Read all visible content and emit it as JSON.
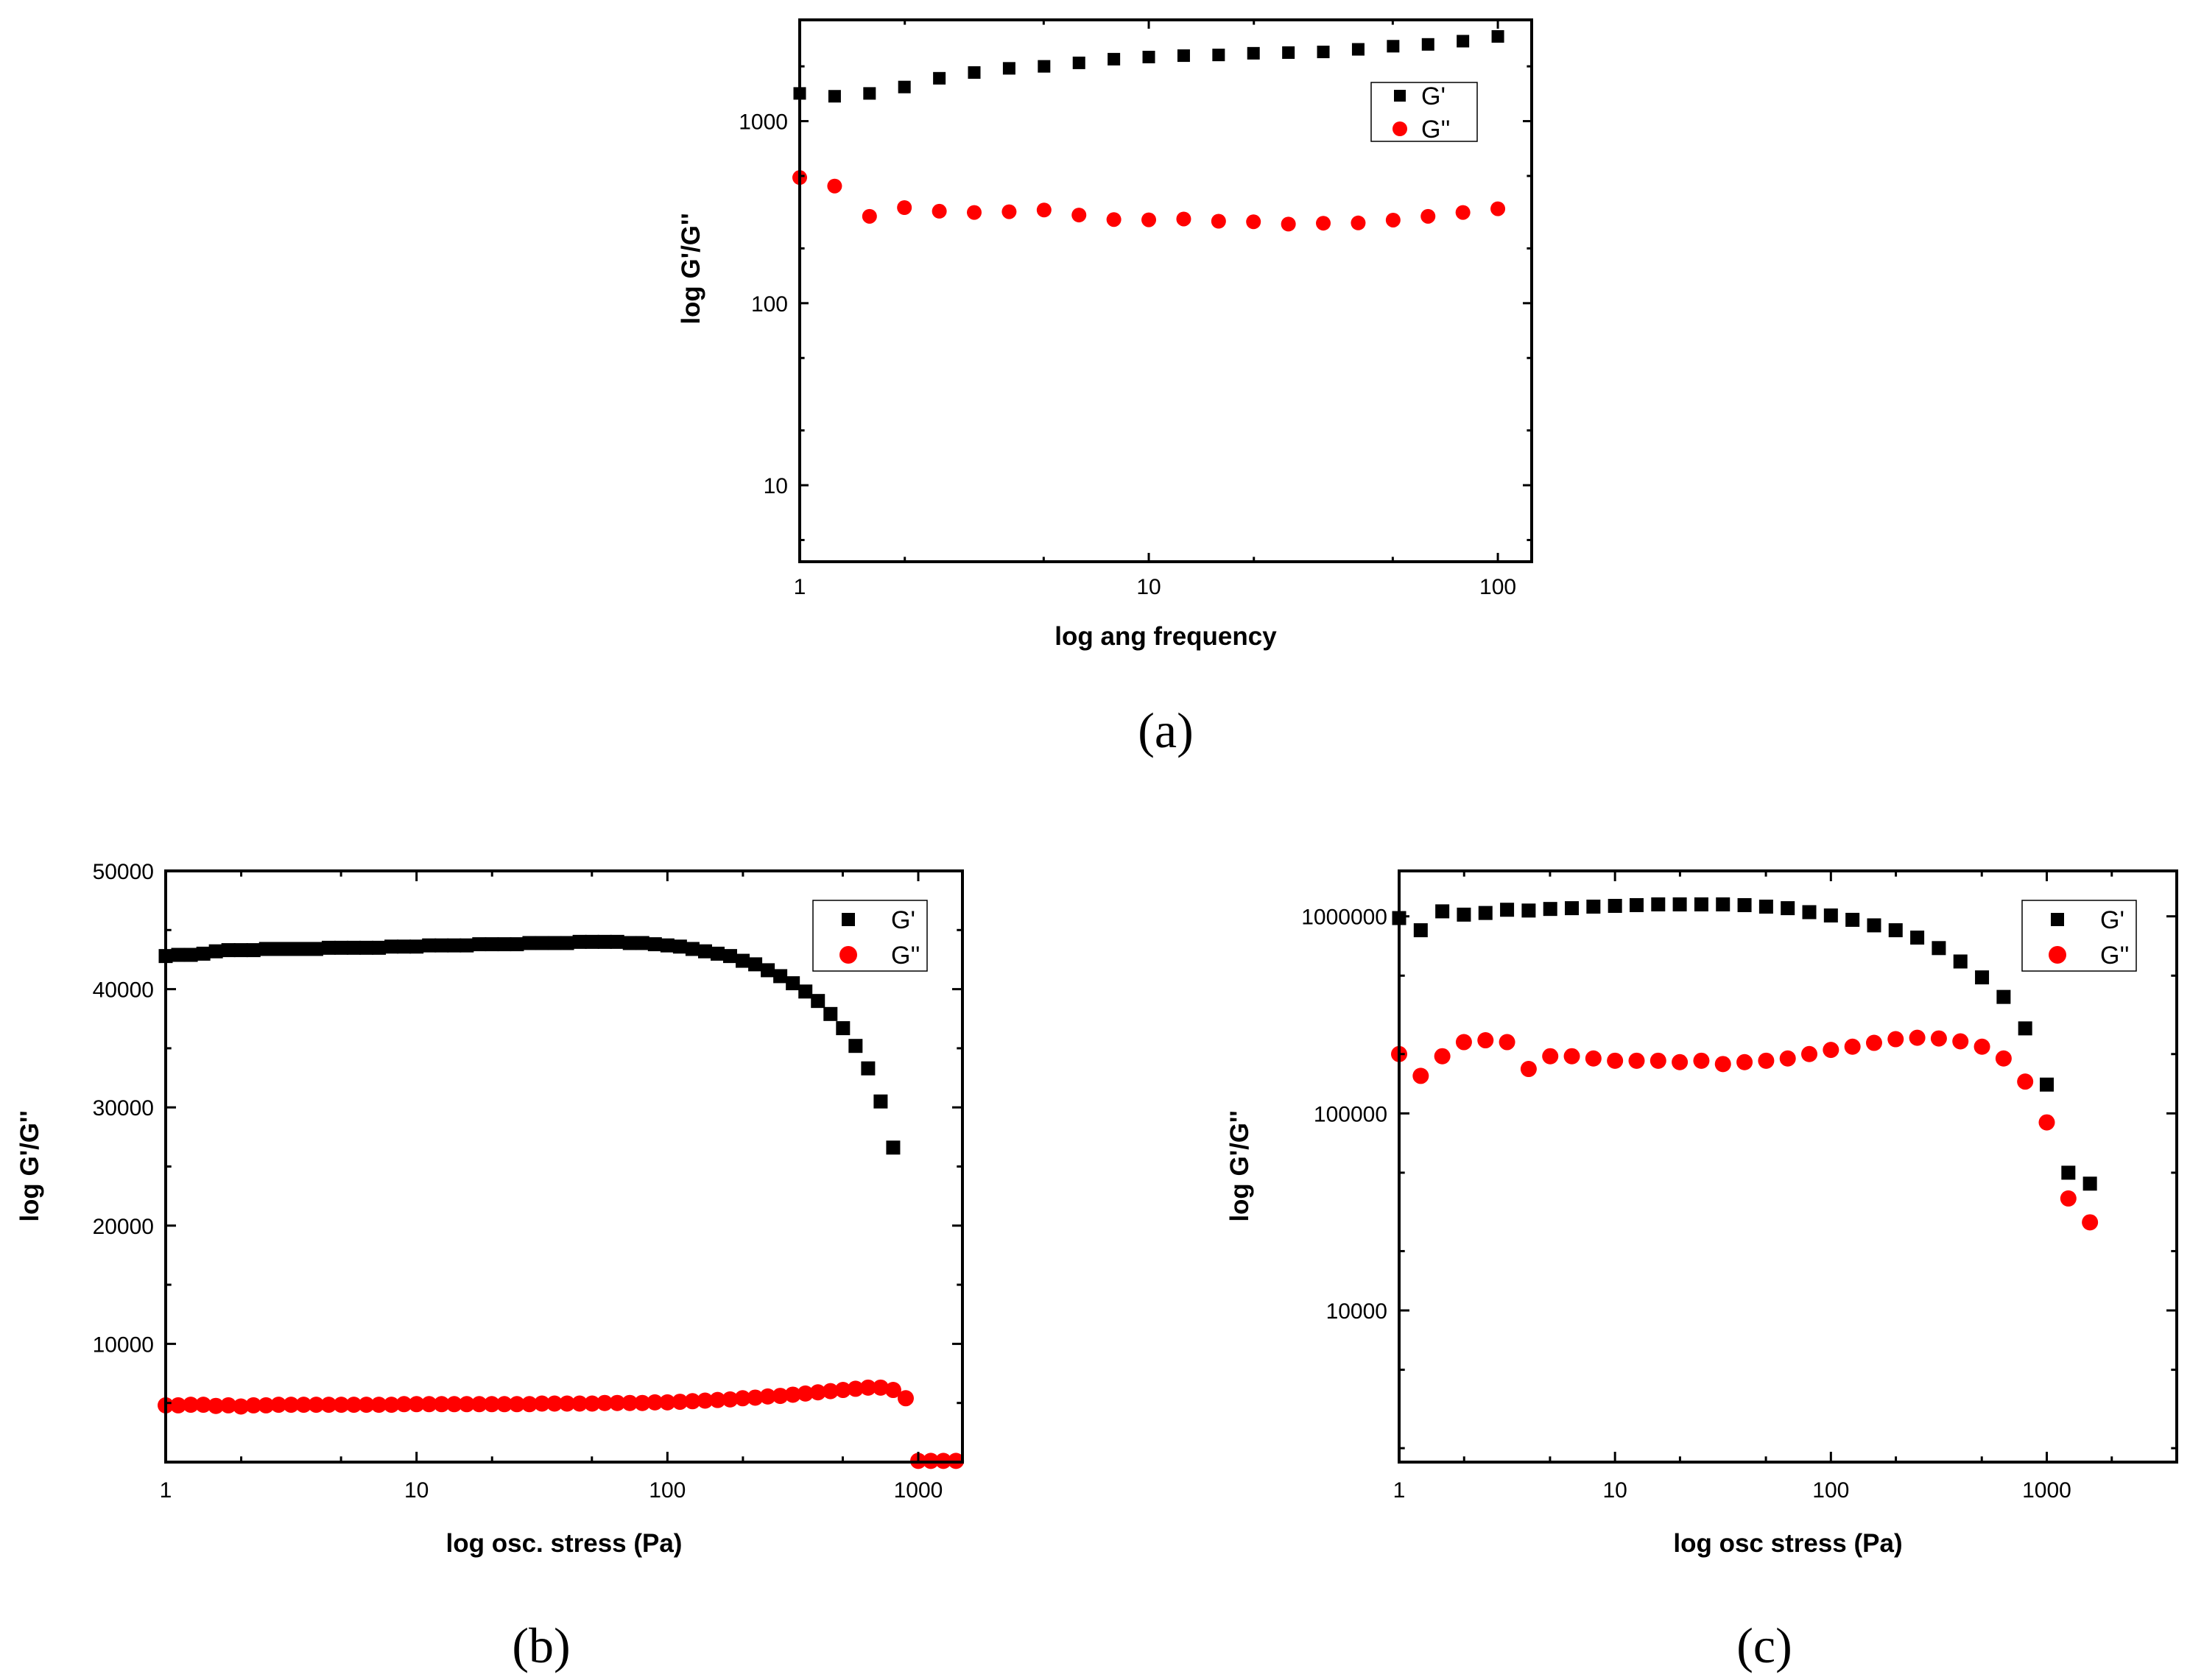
{
  "chart_data": [
    {
      "type": "scatter",
      "panel_label": "(a)",
      "xlabel": "log ang frequency",
      "ylabel": "log G'/G''",
      "xscale": "log",
      "yscale": "log",
      "xlim": [
        1,
        125
      ],
      "ylim": [
        3.8,
        3600
      ],
      "xticks": [
        {
          "v": 1,
          "label": "1"
        },
        {
          "v": 10,
          "label": "10"
        },
        {
          "v": 100,
          "label": "100"
        }
      ],
      "yticks": [
        {
          "v": 10,
          "label": "10"
        },
        {
          "v": 100,
          "label": "100"
        },
        {
          "v": 1000,
          "label": "1000"
        }
      ],
      "legend_position": "top-right",
      "series": [
        {
          "name": "G'",
          "marker": "square",
          "color": "#000000",
          "x": [
            1,
            1.259,
            1.585,
            1.995,
            2.512,
            3.162,
            3.981,
            5.012,
            6.31,
            7.943,
            10,
            12.59,
            15.85,
            19.95,
            25.12,
            31.62,
            39.81,
            50.12,
            63.1,
            79.43,
            100
          ],
          "y": [
            1420,
            1370,
            1420,
            1540,
            1720,
            1850,
            1950,
            2000,
            2090,
            2190,
            2250,
            2290,
            2310,
            2360,
            2380,
            2400,
            2480,
            2580,
            2640,
            2750,
            2920
          ]
        },
        {
          "name": "G''",
          "marker": "circle",
          "color": "#ff0000",
          "x": [
            1,
            1.259,
            1.585,
            1.995,
            2.512,
            3.162,
            3.981,
            5.012,
            6.31,
            7.943,
            10,
            12.59,
            15.85,
            19.95,
            25.12,
            31.62,
            39.81,
            50.12,
            63.1,
            79.43,
            100
          ],
          "y": [
            490,
            440,
            300,
            335,
            320,
            315,
            318,
            325,
            305,
            288,
            287,
            290,
            282,
            280,
            272,
            275,
            276,
            286,
            300,
            315,
            330
          ]
        }
      ]
    },
    {
      "type": "scatter",
      "panel_label": "(b)",
      "xlabel": "log osc. stress (Pa)",
      "ylabel": "log G'/G''",
      "xscale": "log",
      "yscale": "linear",
      "xlim": [
        1,
        1500
      ],
      "ylim": [
        0,
        50000
      ],
      "xticks": [
        {
          "v": 1,
          "label": "1"
        },
        {
          "v": 10,
          "label": "10"
        },
        {
          "v": 100,
          "label": "100"
        },
        {
          "v": 1000,
          "label": "1000"
        }
      ],
      "yticks": [
        {
          "v": 10000,
          "label": "10000"
        },
        {
          "v": 20000,
          "label": "20000"
        },
        {
          "v": 30000,
          "label": "30000"
        },
        {
          "v": 40000,
          "label": "40000"
        },
        {
          "v": 50000,
          "label": "50000"
        }
      ],
      "legend_position": "top-right",
      "series": [
        {
          "name": "G'",
          "marker": "square",
          "color": "#000000",
          "x": [
            1,
            1.122,
            1.259,
            1.413,
            1.585,
            1.778,
            1.995,
            2.239,
            2.512,
            2.818,
            3.162,
            3.548,
            3.981,
            4.467,
            5.012,
            5.623,
            6.31,
            7.079,
            7.943,
            8.913,
            10,
            11.22,
            12.59,
            14.13,
            15.85,
            17.78,
            19.95,
            22.39,
            25.12,
            28.18,
            31.62,
            35.48,
            39.81,
            44.67,
            50.12,
            56.23,
            63.1,
            70.79,
            79.43,
            89.13,
            100,
            112.2,
            125.9,
            141.3,
            158.5,
            177.8,
            199.5,
            223.9,
            251.2,
            281.8,
            316.2,
            354.8,
            398.1,
            446.7,
            501.2,
            562.3,
            631,
            707.9,
            794.3
          ],
          "y": [
            42800,
            42900,
            42900,
            43000,
            43200,
            43300,
            43300,
            43300,
            43400,
            43400,
            43400,
            43400,
            43400,
            43500,
            43500,
            43500,
            43500,
            43500,
            43600,
            43600,
            43600,
            43700,
            43700,
            43700,
            43700,
            43800,
            43800,
            43800,
            43800,
            43900,
            43900,
            43900,
            43900,
            44000,
            44000,
            44000,
            44000,
            43900,
            43900,
            43800,
            43700,
            43600,
            43400,
            43200,
            43000,
            42800,
            42400,
            42100,
            41600,
            41100,
            40500,
            39800,
            39000,
            37900,
            36700,
            35200,
            33300,
            30500,
            26600
          ]
        },
        {
          "name": "G''",
          "marker": "circle",
          "color": "#ff0000",
          "x": [
            1,
            1.122,
            1.259,
            1.413,
            1.585,
            1.778,
            1.995,
            2.239,
            2.512,
            2.818,
            3.162,
            3.548,
            3.981,
            4.467,
            5.012,
            5.623,
            6.31,
            7.079,
            7.943,
            8.913,
            10,
            11.22,
            12.59,
            14.13,
            15.85,
            17.78,
            19.95,
            22.39,
            25.12,
            28.18,
            31.62,
            35.48,
            39.81,
            44.67,
            50.12,
            56.23,
            63.1,
            70.79,
            79.43,
            89.13,
            100,
            112.2,
            125.9,
            141.3,
            158.5,
            177.8,
            199.5,
            223.9,
            251.2,
            281.8,
            316.2,
            354.8,
            398.1,
            446.7,
            501.2,
            562.3,
            631,
            707.9,
            794.3,
            891.3,
            1000,
            1122,
            1259,
            1413
          ],
          "y": [
            4800,
            4800,
            4850,
            4850,
            4750,
            4800,
            4700,
            4800,
            4800,
            4850,
            4850,
            4850,
            4850,
            4850,
            4850,
            4850,
            4850,
            4850,
            4850,
            4900,
            4900,
            4900,
            4900,
            4900,
            4900,
            4900,
            4900,
            4900,
            4900,
            4900,
            4950,
            4950,
            4950,
            4950,
            4950,
            5000,
            5000,
            5000,
            5000,
            5050,
            5050,
            5100,
            5150,
            5200,
            5250,
            5300,
            5400,
            5450,
            5550,
            5600,
            5700,
            5800,
            5900,
            6000,
            6100,
            6200,
            6300,
            6300,
            6100,
            5400,
            100,
            100,
            100,
            100
          ]
        }
      ]
    },
    {
      "type": "scatter",
      "panel_label": "(c)",
      "xlabel": "log osc stress (Pa)",
      "ylabel": "log G'/G''",
      "xscale": "log",
      "yscale": "log",
      "xlim": [
        1,
        4000
      ],
      "ylim": [
        1700,
        1700000
      ],
      "xticks": [
        {
          "v": 1,
          "label": "1"
        },
        {
          "v": 10,
          "label": "10"
        },
        {
          "v": 100,
          "label": "100"
        },
        {
          "v": 1000,
          "label": "1000"
        }
      ],
      "yticks": [
        {
          "v": 10000,
          "label": "10000"
        },
        {
          "v": 100000,
          "label": "100000"
        },
        {
          "v": 1000000,
          "label": "1000000"
        }
      ],
      "legend_position": "top-right",
      "series": [
        {
          "name": "G'",
          "marker": "square",
          "color": "#000000",
          "x": [
            1,
            1.259,
            1.585,
            1.995,
            2.512,
            3.162,
            3.981,
            5.012,
            6.31,
            7.943,
            10,
            12.59,
            15.85,
            19.95,
            25.12,
            31.62,
            39.81,
            50.12,
            63.1,
            79.43,
            100,
            125.9,
            158.5,
            199.5,
            251.2,
            316.2,
            398.1,
            501.2,
            631,
            794.3,
            1000,
            1259,
            1585
          ],
          "y": [
            980000,
            850000,
            1060000,
            1020000,
            1040000,
            1080000,
            1070000,
            1090000,
            1100000,
            1120000,
            1130000,
            1140000,
            1150000,
            1150000,
            1150000,
            1150000,
            1140000,
            1120000,
            1100000,
            1050000,
            1010000,
            960000,
            900000,
            850000,
            780000,
            690000,
            590000,
            490000,
            390000,
            270000,
            140000,
            50000,
            44000
          ]
        },
        {
          "name": "G''",
          "marker": "circle",
          "color": "#ff0000",
          "x": [
            1,
            1.259,
            1.585,
            1.995,
            2.512,
            3.162,
            3.981,
            5.012,
            6.31,
            7.943,
            10,
            12.59,
            15.85,
            19.95,
            25.12,
            31.62,
            39.81,
            50.12,
            63.1,
            79.43,
            100,
            125.9,
            158.5,
            199.5,
            251.2,
            316.2,
            398.1,
            501.2,
            631,
            794.3,
            1000,
            1259,
            1585
          ],
          "y": [
            200000,
            155000,
            195000,
            230000,
            235000,
            230000,
            168000,
            195000,
            195000,
            190000,
            185000,
            185000,
            185000,
            182000,
            185000,
            178000,
            182000,
            185000,
            190000,
            200000,
            210000,
            218000,
            228000,
            238000,
            242000,
            240000,
            232000,
            218000,
            190000,
            145000,
            90000,
            37000,
            28000
          ]
        }
      ]
    }
  ]
}
